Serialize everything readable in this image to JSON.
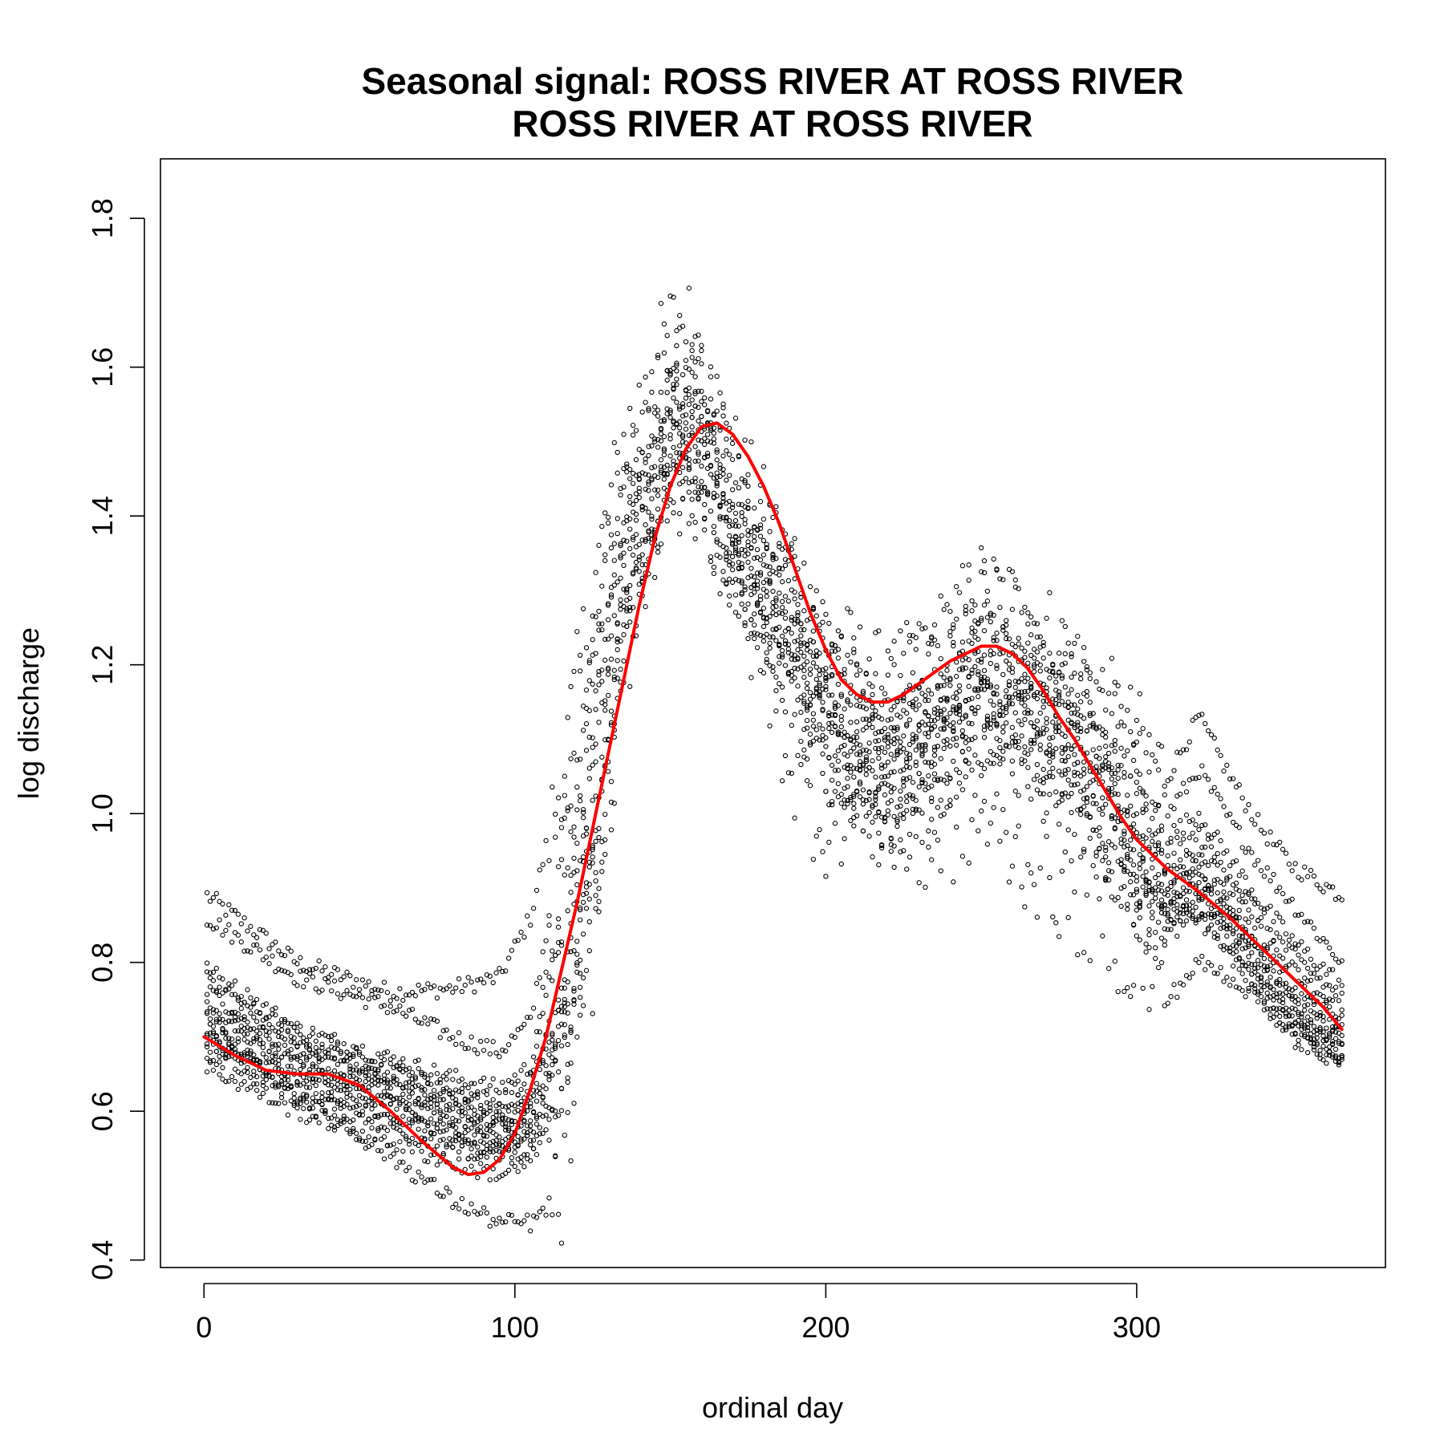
{
  "chart_data": {
    "type": "scatter",
    "title": "Seasonal signal: ROSS RIVER AT ROSS RIVER",
    "subtitle": "ROSS RIVER AT ROSS RIVER",
    "xlabel": "ordinal day",
    "ylabel": "log discharge",
    "xlim": [
      -14,
      380
    ],
    "ylim": [
      0.39,
      1.88
    ],
    "xticks": [
      0,
      100,
      200,
      300
    ],
    "yticks": [
      0.4,
      0.6,
      0.8,
      1.0,
      1.2,
      1.4,
      1.6,
      1.8
    ],
    "xtick_labels": [
      "0",
      "100",
      "200",
      "300"
    ],
    "ytick_labels": [
      "0.4",
      "0.6",
      "0.8",
      "1.0",
      "1.2",
      "1.4",
      "1.6",
      "1.8"
    ],
    "grid": false,
    "legend": "none",
    "colors": {
      "points": "#000000",
      "smooth": "#ff0000"
    },
    "series": [
      {
        "kind": "points",
        "note_source": "observed daily values, many years overlaid",
        "anchor_days": [
          1,
          30,
          60,
          80,
          95,
          105,
          115,
          125,
          135,
          145,
          150,
          155,
          160,
          165,
          170,
          180,
          190,
          200,
          210,
          220,
          230,
          240,
          250,
          260,
          270,
          280,
          290,
          300,
          310,
          320,
          330,
          340,
          350,
          366
        ],
        "year_profiles": [
          [
            0.89,
            0.8,
            0.76,
            0.765,
            0.78,
            0.86,
            1.05,
            1.3,
            1.5,
            1.6,
            1.65,
            1.66,
            1.62,
            1.55,
            1.48,
            1.4,
            1.32,
            1.25,
            1.2,
            1.17,
            1.2,
            1.25,
            1.3,
            1.28,
            1.25,
            1.2,
            1.15,
            1.1,
            1.05,
            1.13,
            1.05,
            0.98,
            0.93,
            0.89
          ],
          [
            0.86,
            0.78,
            0.74,
            0.7,
            0.68,
            0.72,
            0.95,
            1.25,
            1.45,
            1.55,
            1.6,
            1.62,
            1.6,
            1.52,
            1.45,
            1.38,
            1.3,
            1.22,
            1.17,
            1.15,
            1.18,
            1.22,
            1.27,
            1.25,
            1.22,
            1.18,
            1.12,
            1.06,
            1.0,
            1.06,
            0.99,
            0.93,
            0.88,
            0.8
          ],
          [
            0.79,
            0.71,
            0.67,
            0.645,
            0.63,
            0.66,
            0.9,
            1.2,
            1.42,
            1.52,
            1.57,
            1.6,
            1.58,
            1.5,
            1.44,
            1.36,
            1.28,
            1.2,
            1.15,
            1.12,
            1.15,
            1.2,
            1.24,
            1.22,
            1.19,
            1.15,
            1.1,
            1.03,
            0.97,
            1.0,
            0.94,
            0.88,
            0.83,
            0.77
          ],
          [
            0.78,
            0.7,
            0.66,
            0.63,
            0.61,
            0.64,
            0.85,
            1.15,
            1.4,
            1.5,
            1.55,
            1.58,
            1.56,
            1.48,
            1.42,
            1.35,
            1.27,
            1.18,
            1.13,
            1.1,
            1.13,
            1.18,
            1.22,
            1.2,
            1.17,
            1.13,
            1.08,
            1.0,
            0.95,
            0.97,
            0.92,
            0.86,
            0.81,
            0.75
          ],
          [
            0.76,
            0.69,
            0.65,
            0.62,
            0.6,
            0.62,
            0.8,
            1.1,
            1.38,
            1.48,
            1.53,
            1.56,
            1.54,
            1.46,
            1.4,
            1.33,
            1.25,
            1.16,
            1.11,
            1.08,
            1.11,
            1.16,
            1.2,
            1.18,
            1.15,
            1.11,
            1.06,
            0.98,
            0.93,
            0.95,
            0.9,
            0.84,
            0.79,
            0.73
          ],
          [
            0.74,
            0.68,
            0.64,
            0.61,
            0.59,
            0.61,
            0.78,
            1.08,
            1.36,
            1.46,
            1.52,
            1.55,
            1.52,
            1.45,
            1.39,
            1.32,
            1.24,
            1.15,
            1.1,
            1.07,
            1.1,
            1.14,
            1.19,
            1.17,
            1.14,
            1.1,
            1.04,
            0.96,
            0.91,
            0.93,
            0.88,
            0.82,
            0.77,
            0.72
          ],
          [
            0.73,
            0.67,
            0.63,
            0.6,
            0.58,
            0.6,
            0.75,
            1.05,
            1.34,
            1.45,
            1.5,
            1.53,
            1.5,
            1.44,
            1.38,
            1.31,
            1.23,
            1.14,
            1.09,
            1.06,
            1.09,
            1.13,
            1.18,
            1.16,
            1.13,
            1.09,
            1.03,
            0.95,
            0.9,
            0.92,
            0.87,
            0.81,
            0.76,
            0.71
          ],
          [
            0.72,
            0.66,
            0.62,
            0.59,
            0.57,
            0.59,
            0.72,
            1.0,
            1.32,
            1.44,
            1.49,
            1.52,
            1.49,
            1.43,
            1.37,
            1.3,
            1.22,
            1.13,
            1.08,
            1.05,
            1.08,
            1.12,
            1.17,
            1.15,
            1.12,
            1.08,
            1.02,
            0.94,
            0.89,
            0.91,
            0.86,
            0.8,
            0.75,
            0.7
          ],
          [
            0.71,
            0.65,
            0.61,
            0.58,
            0.56,
            0.58,
            0.7,
            0.98,
            1.3,
            1.43,
            1.48,
            1.51,
            1.48,
            1.42,
            1.36,
            1.29,
            1.21,
            1.12,
            1.07,
            1.04,
            1.07,
            1.11,
            1.16,
            1.14,
            1.11,
            1.07,
            1.01,
            0.93,
            0.88,
            0.9,
            0.85,
            0.79,
            0.74,
            0.69
          ],
          [
            0.7,
            0.64,
            0.6,
            0.57,
            0.55,
            0.57,
            0.68,
            0.95,
            1.28,
            1.42,
            1.47,
            1.5,
            1.47,
            1.41,
            1.35,
            1.28,
            1.2,
            1.11,
            1.06,
            1.03,
            1.06,
            1.1,
            1.15,
            1.13,
            1.1,
            1.06,
            1.0,
            0.92,
            0.87,
            0.89,
            0.84,
            0.78,
            0.73,
            0.68
          ],
          [
            0.69,
            0.63,
            0.59,
            0.56,
            0.55,
            0.56,
            0.66,
            0.92,
            1.26,
            1.41,
            1.46,
            1.49,
            1.46,
            1.4,
            1.34,
            1.27,
            1.19,
            1.1,
            1.05,
            1.02,
            1.05,
            1.09,
            1.14,
            1.12,
            1.09,
            1.05,
            0.99,
            0.91,
            0.86,
            0.88,
            0.83,
            0.77,
            0.72,
            0.67
          ],
          [
            0.68,
            0.62,
            0.58,
            0.55,
            0.54,
            0.55,
            0.64,
            0.9,
            1.24,
            1.4,
            1.45,
            1.48,
            1.45,
            1.39,
            1.33,
            1.26,
            1.18,
            1.09,
            1.04,
            1.01,
            1.04,
            1.08,
            1.13,
            1.11,
            1.08,
            1.04,
            0.98,
            0.9,
            0.85,
            0.87,
            0.82,
            0.76,
            0.71,
            0.67
          ],
          [
            0.66,
            0.6,
            0.56,
            0.53,
            0.515,
            0.53,
            0.62,
            0.88,
            1.22,
            1.39,
            1.44,
            1.47,
            1.44,
            1.38,
            1.32,
            1.25,
            1.17,
            1.08,
            1.03,
            1.0,
            1.03,
            1.07,
            1.12,
            1.1,
            1.07,
            1.03,
            0.97,
            0.89,
            0.84,
            0.86,
            0.81,
            0.75,
            0.7,
            0.66
          ],
          [
            0.7,
            0.62,
            0.54,
            0.48,
            0.45,
            0.45,
            0.48,
            0.8,
            1.2,
            1.38,
            1.42,
            1.45,
            1.42,
            1.36,
            1.3,
            1.2,
            1.05,
            0.98,
            1.02,
            0.97,
            0.95,
            0.97,
            1.0,
            0.95,
            0.92,
            0.88,
            0.85,
            0.8,
            0.75,
            0.8,
            0.78,
            0.75,
            0.72,
            0.68
          ]
        ]
      },
      {
        "kind": "smooth",
        "x": [
          0,
          10,
          20,
          30,
          40,
          50,
          60,
          70,
          80,
          85,
          90,
          95,
          100,
          105,
          110,
          115,
          120,
          125,
          130,
          135,
          140,
          145,
          150,
          155,
          160,
          165,
          170,
          175,
          180,
          185,
          190,
          195,
          200,
          205,
          210,
          215,
          220,
          225,
          230,
          235,
          240,
          245,
          250,
          255,
          260,
          265,
          270,
          275,
          280,
          285,
          290,
          295,
          300,
          310,
          320,
          330,
          340,
          350,
          360,
          366
        ],
        "y": [
          0.7,
          0.675,
          0.655,
          0.65,
          0.65,
          0.635,
          0.6,
          0.56,
          0.525,
          0.515,
          0.518,
          0.535,
          0.57,
          0.63,
          0.7,
          0.79,
          0.88,
          0.98,
          1.08,
          1.18,
          1.28,
          1.37,
          1.44,
          1.49,
          1.52,
          1.525,
          1.51,
          1.48,
          1.44,
          1.39,
          1.33,
          1.27,
          1.22,
          1.18,
          1.16,
          1.15,
          1.15,
          1.16,
          1.175,
          1.19,
          1.205,
          1.215,
          1.225,
          1.225,
          1.215,
          1.195,
          1.165,
          1.13,
          1.1,
          1.065,
          1.03,
          0.995,
          0.965,
          0.925,
          0.895,
          0.86,
          0.82,
          0.78,
          0.74,
          0.71
        ]
      }
    ]
  }
}
